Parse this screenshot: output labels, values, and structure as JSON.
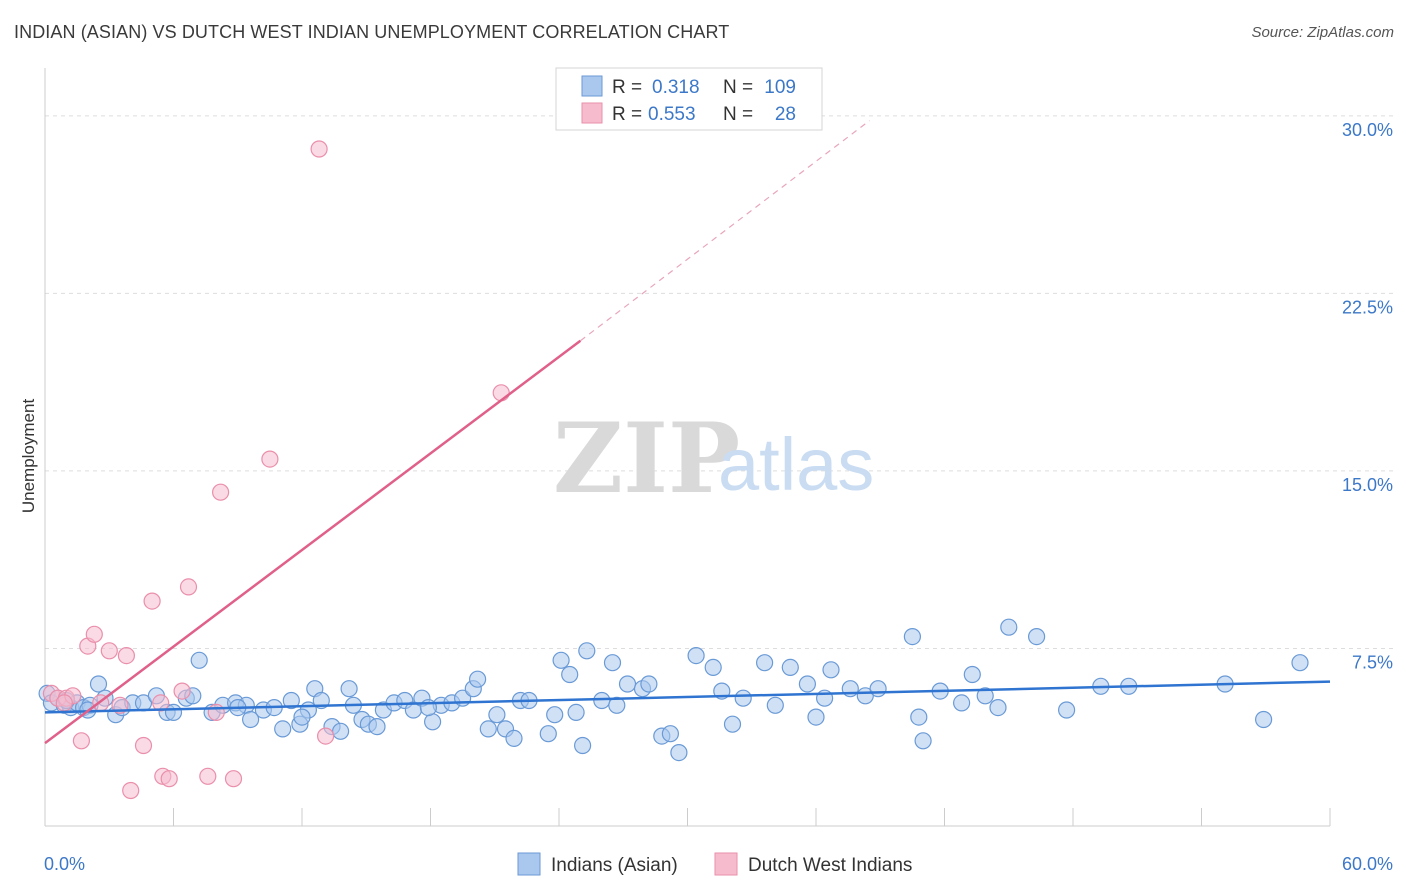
{
  "header": {
    "title": "INDIAN (ASIAN) VS DUTCH WEST INDIAN UNEMPLOYMENT CORRELATION CHART",
    "source": "Source: ZipAtlas.com"
  },
  "watermark": {
    "zip": "ZIP",
    "atlas": "atlas"
  },
  "colors": {
    "blue_dot_fill": "#aac8ee",
    "blue_dot_stroke": "#6a9ad6",
    "blue_line": "#2f74d0",
    "pink_dot_fill": "#f6bccd",
    "pink_dot_stroke": "#ea8fab",
    "pink_line": "#e0608a",
    "tick_text": "#3c78c8",
    "grid": "#dddddd"
  },
  "chart_data": {
    "type": "scatter",
    "title": "INDIAN (ASIAN) VS DUTCH WEST INDIAN UNEMPLOYMENT CORRELATION CHART",
    "xlabel": "",
    "ylabel": "Unemployment",
    "xlim": [
      0,
      60
    ],
    "ylim": [
      0,
      31.6
    ],
    "x_tick_labels": [
      "0.0%",
      "60.0%"
    ],
    "y_ticks": [
      7.5,
      15.0,
      22.5,
      30.0
    ],
    "y_tick_labels": [
      "7.5%",
      "15.0%",
      "22.5%",
      "30.0%"
    ],
    "grid": true,
    "legend_top": [
      {
        "r_label": "R =",
        "r_value": "0.318",
        "n_label": "N =",
        "n_value": "109"
      },
      {
        "r_label": "R =",
        "r_value": "0.553",
        "n_label": "N =",
        "n_value": "28"
      }
    ],
    "legend_bottom": [
      "Indians (Asian)",
      "Dutch West Indians"
    ],
    "series": [
      {
        "name": "Indians (Asian)",
        "trend": {
          "x": [
            0,
            60
          ],
          "y": [
            4.8,
            6.1
          ],
          "dashed_extension": false
        },
        "points": [
          [
            0.1,
            5.6
          ],
          [
            0.3,
            5.2
          ],
          [
            0.6,
            5.4
          ],
          [
            0.9,
            5.1
          ],
          [
            1.2,
            5.0
          ],
          [
            1.5,
            5.2
          ],
          [
            1.8,
            5.0
          ],
          [
            2.1,
            5.1
          ],
          [
            2.5,
            6.0
          ],
          [
            2.8,
            5.4
          ],
          [
            3.3,
            4.7
          ],
          [
            3.6,
            5.0
          ],
          [
            4.1,
            5.2
          ],
          [
            4.6,
            5.2
          ],
          [
            5.2,
            5.5
          ],
          [
            5.7,
            4.8
          ],
          [
            6.0,
            4.8
          ],
          [
            6.6,
            5.4
          ],
          [
            7.2,
            7.0
          ],
          [
            7.8,
            4.8
          ],
          [
            8.3,
            5.1
          ],
          [
            8.9,
            5.2
          ],
          [
            9.4,
            5.1
          ],
          [
            9.6,
            4.5
          ],
          [
            10.2,
            4.9
          ],
          [
            10.7,
            5.0
          ],
          [
            11.1,
            4.1
          ],
          [
            11.5,
            5.3
          ],
          [
            11.9,
            4.3
          ],
          [
            12.3,
            4.9
          ],
          [
            12.6,
            5.8
          ],
          [
            12.9,
            5.3
          ],
          [
            13.4,
            4.2
          ],
          [
            13.8,
            4.0
          ],
          [
            14.2,
            5.8
          ],
          [
            14.4,
            5.1
          ],
          [
            14.8,
            4.5
          ],
          [
            15.1,
            4.3
          ],
          [
            15.5,
            4.2
          ],
          [
            15.8,
            4.9
          ],
          [
            16.3,
            5.2
          ],
          [
            16.8,
            5.3
          ],
          [
            17.2,
            4.9
          ],
          [
            17.6,
            5.4
          ],
          [
            18.1,
            4.4
          ],
          [
            18.5,
            5.1
          ],
          [
            19.0,
            5.2
          ],
          [
            19.5,
            5.4
          ],
          [
            20.0,
            5.8
          ],
          [
            20.2,
            6.2
          ],
          [
            20.7,
            4.1
          ],
          [
            21.1,
            4.7
          ],
          [
            21.5,
            4.1
          ],
          [
            21.9,
            3.7
          ],
          [
            22.2,
            5.3
          ],
          [
            22.6,
            5.3
          ],
          [
            23.5,
            3.9
          ],
          [
            23.8,
            4.7
          ],
          [
            24.1,
            7.0
          ],
          [
            24.5,
            6.4
          ],
          [
            25.1,
            3.4
          ],
          [
            25.3,
            7.4
          ],
          [
            26.0,
            5.3
          ],
          [
            26.5,
            6.9
          ],
          [
            26.7,
            5.1
          ],
          [
            27.2,
            6.0
          ],
          [
            27.9,
            5.8
          ],
          [
            28.2,
            6.0
          ],
          [
            28.8,
            3.8
          ],
          [
            29.2,
            3.9
          ],
          [
            29.6,
            3.1
          ],
          [
            30.4,
            7.2
          ],
          [
            31.2,
            6.7
          ],
          [
            31.6,
            5.7
          ],
          [
            32.1,
            4.3
          ],
          [
            32.6,
            5.4
          ],
          [
            33.6,
            6.9
          ],
          [
            34.1,
            5.1
          ],
          [
            34.8,
            6.7
          ],
          [
            35.6,
            6.0
          ],
          [
            36.0,
            4.6
          ],
          [
            36.4,
            5.4
          ],
          [
            36.7,
            6.6
          ],
          [
            37.6,
            5.8
          ],
          [
            38.3,
            5.5
          ],
          [
            38.9,
            5.8
          ],
          [
            40.5,
            8.0
          ],
          [
            40.8,
            4.6
          ],
          [
            41.0,
            3.6
          ],
          [
            41.8,
            5.7
          ],
          [
            42.8,
            5.2
          ],
          [
            43.3,
            6.4
          ],
          [
            43.9,
            5.5
          ],
          [
            45.0,
            8.4
          ],
          [
            46.3,
            8.0
          ],
          [
            47.7,
            4.9
          ],
          [
            49.3,
            5.9
          ],
          [
            50.6,
            5.9
          ],
          [
            55.1,
            6.0
          ],
          [
            56.9,
            4.5
          ],
          [
            58.6,
            6.9
          ],
          [
            1.0,
            5.3
          ],
          [
            2.0,
            4.9
          ],
          [
            6.9,
            5.5
          ],
          [
            9.0,
            5.0
          ],
          [
            12.0,
            4.6
          ],
          [
            17.9,
            5.0
          ],
          [
            24.8,
            4.8
          ],
          [
            44.5,
            5.0
          ]
        ]
      },
      {
        "name": "Dutch West Indians",
        "trend": {
          "x": [
            0,
            25
          ],
          "y": [
            3.5,
            20.5
          ],
          "dashed_extension": true,
          "dash_to": [
            38.5,
            29.8
          ]
        },
        "points": [
          [
            0.3,
            5.6
          ],
          [
            0.6,
            5.4
          ],
          [
            1.0,
            5.4
          ],
          [
            1.3,
            5.5
          ],
          [
            1.7,
            3.6
          ],
          [
            2.0,
            7.6
          ],
          [
            2.3,
            8.1
          ],
          [
            2.6,
            5.2
          ],
          [
            3.0,
            7.4
          ],
          [
            3.5,
            5.1
          ],
          [
            3.8,
            7.2
          ],
          [
            4.0,
            1.5
          ],
          [
            4.6,
            3.4
          ],
          [
            5.0,
            9.5
          ],
          [
            5.4,
            5.2
          ],
          [
            5.5,
            2.1
          ],
          [
            5.8,
            2.0
          ],
          [
            6.4,
            5.7
          ],
          [
            6.7,
            10.1
          ],
          [
            7.6,
            2.1
          ],
          [
            8.0,
            4.8
          ],
          [
            8.2,
            14.1
          ],
          [
            8.8,
            2.0
          ],
          [
            10.5,
            15.5
          ],
          [
            12.8,
            28.6
          ],
          [
            13.1,
            3.8
          ],
          [
            21.3,
            18.3
          ],
          [
            0.9,
            5.2
          ]
        ]
      }
    ]
  }
}
